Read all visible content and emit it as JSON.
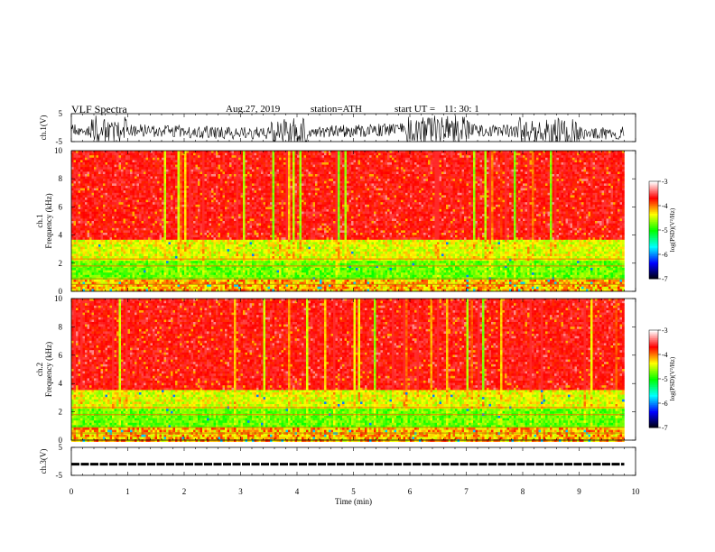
{
  "header": {
    "title": "VLF  Spectra",
    "date": "Aug.27, 2019",
    "station": "station=ATH",
    "start_label": "start  UT  =",
    "start_time": "11: 30: 1"
  },
  "chart_data": {
    "type": "heatmap",
    "x_axis": {
      "label": "Time  (min)",
      "range": [
        0,
        10
      ],
      "ticks": [
        "0",
        "1",
        "2",
        "3",
        "4",
        "5",
        "6",
        "7",
        "8",
        "9",
        "10"
      ],
      "data_end": 9.8
    },
    "panels": [
      {
        "name": "waveform-ch1",
        "type": "line",
        "ylabel": "ch.1(V)",
        "ylim": [
          -5,
          5
        ],
        "ticks": [
          "5",
          "-5"
        ]
      },
      {
        "name": "spectrogram-ch1",
        "type": "heatmap",
        "ylabel_channel": "ch.1",
        "ylabel": "Frequency  (kHz)",
        "ylim": [
          0,
          10
        ],
        "ticks": [
          "0",
          "2",
          "4",
          "6",
          "8",
          "10"
        ],
        "colorbar": {
          "label": "log(PSD)(V²/Hz)",
          "range": [
            -7,
            -3
          ],
          "ticks": [
            "-3",
            "-4",
            "-5",
            "-6",
            "-7"
          ]
        }
      },
      {
        "name": "spectrogram-ch2",
        "type": "heatmap",
        "ylabel_channel": "ch.2",
        "ylabel": "Frequency  (kHz)",
        "ylim": [
          0,
          10
        ],
        "ticks": [
          "0",
          "2",
          "4",
          "6",
          "8",
          "10"
        ],
        "colorbar": {
          "label": "log(PSD)(V²/Hz)",
          "range": [
            -7,
            -3
          ],
          "ticks": [
            "-3",
            "-4",
            "-5",
            "-6",
            "-7"
          ]
        }
      },
      {
        "name": "waveform-ch3",
        "type": "line",
        "ylabel": "ch.3(V)",
        "ylim": [
          -5,
          5
        ],
        "ticks": [
          "5",
          "-5"
        ],
        "level": -1
      }
    ],
    "colormap": [
      "#000000",
      "#0000ff",
      "#00ffff",
      "#00ff00",
      "#ffff00",
      "#ff0000",
      "#ffffff"
    ]
  }
}
